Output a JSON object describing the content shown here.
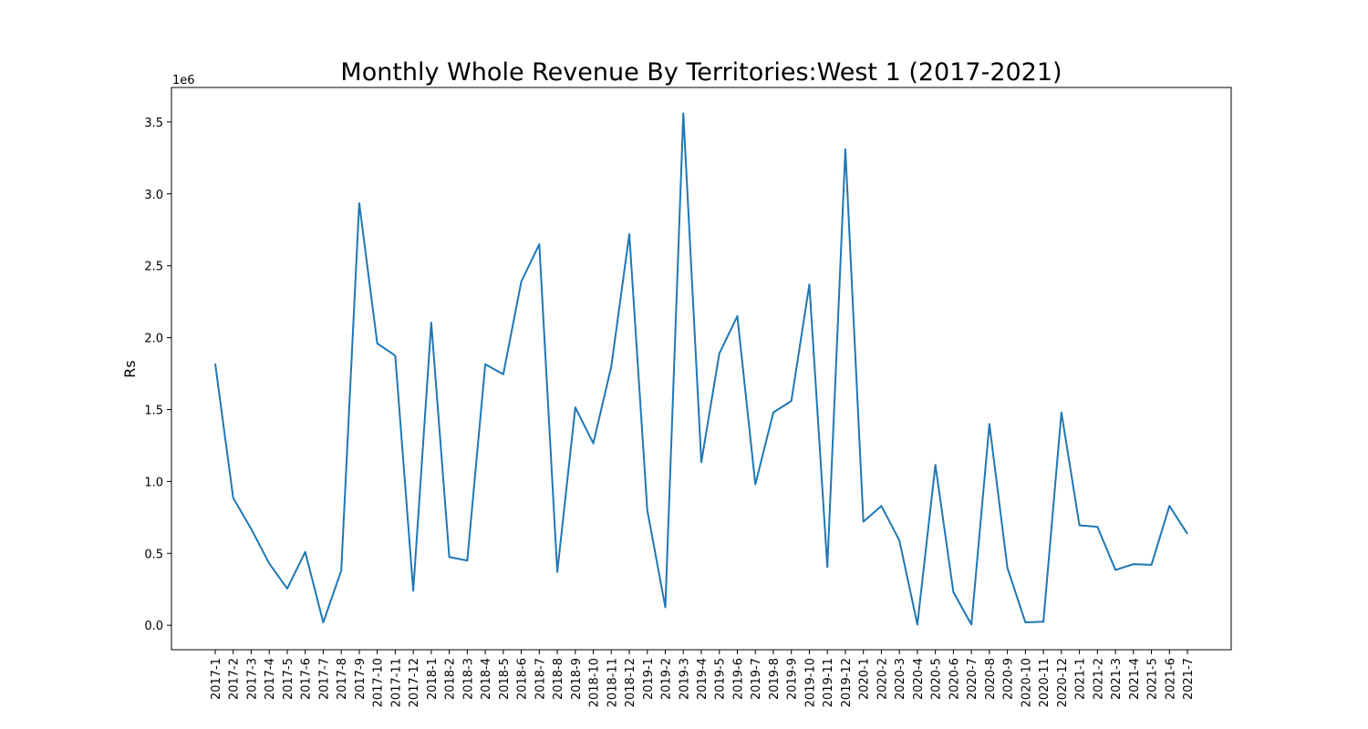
{
  "chart_data": {
    "type": "line",
    "title": "Monthly Whole Revenue By Territories:West 1 (2017-2021)",
    "xlabel": "",
    "ylabel": "Rs",
    "y_scale_label": "1e6",
    "y_scale": 1000000,
    "ylim": [
      -170000,
      3740000
    ],
    "yticks": [
      0.0,
      0.5,
      1.0,
      1.5,
      2.0,
      2.5,
      3.0,
      3.5
    ],
    "ytick_labels": [
      "0.0",
      "0.5",
      "1.0",
      "1.5",
      "2.0",
      "2.5",
      "3.0",
      "3.5"
    ],
    "grid": false,
    "line_color": "#1f77b4",
    "categories": [
      "2017-1",
      "2017-2",
      "2017-3",
      "2017-4",
      "2017-5",
      "2017-6",
      "2017-7",
      "2017-8",
      "2017-9",
      "2017-10",
      "2017-11",
      "2017-12",
      "2018-1",
      "2018-2",
      "2018-3",
      "2018-4",
      "2018-5",
      "2018-6",
      "2018-7",
      "2018-8",
      "2018-9",
      "2018-10",
      "2018-11",
      "2018-12",
      "2019-1",
      "2019-2",
      "2019-3",
      "2019-4",
      "2019-5",
      "2019-6",
      "2019-7",
      "2019-8",
      "2019-9",
      "2019-10",
      "2019-11",
      "2019-12",
      "2020-1",
      "2020-2",
      "2020-3",
      "2020-4",
      "2020-5",
      "2020-6",
      "2020-7",
      "2020-8",
      "2020-9",
      "2020-10",
      "2020-11",
      "2020-12",
      "2021-1",
      "2021-2",
      "2021-3",
      "2021-4",
      "2021-5",
      "2021-6",
      "2021-7"
    ],
    "values": [
      1820000,
      885000,
      670000,
      430000,
      255000,
      510000,
      20000,
      380000,
      2935000,
      1960000,
      1875000,
      240000,
      2105000,
      475000,
      450000,
      1815000,
      1745000,
      2390000,
      2650000,
      370000,
      1515000,
      1265000,
      1800000,
      2720000,
      800000,
      125000,
      3560000,
      1135000,
      1890000,
      2150000,
      980000,
      1480000,
      1560000,
      2370000,
      405000,
      3310000,
      720000,
      830000,
      590000,
      5000,
      1115000,
      230000,
      5000,
      1400000,
      400000,
      20000,
      25000,
      1480000,
      695000,
      685000,
      385000,
      425000,
      420000,
      830000,
      635000
    ]
  }
}
